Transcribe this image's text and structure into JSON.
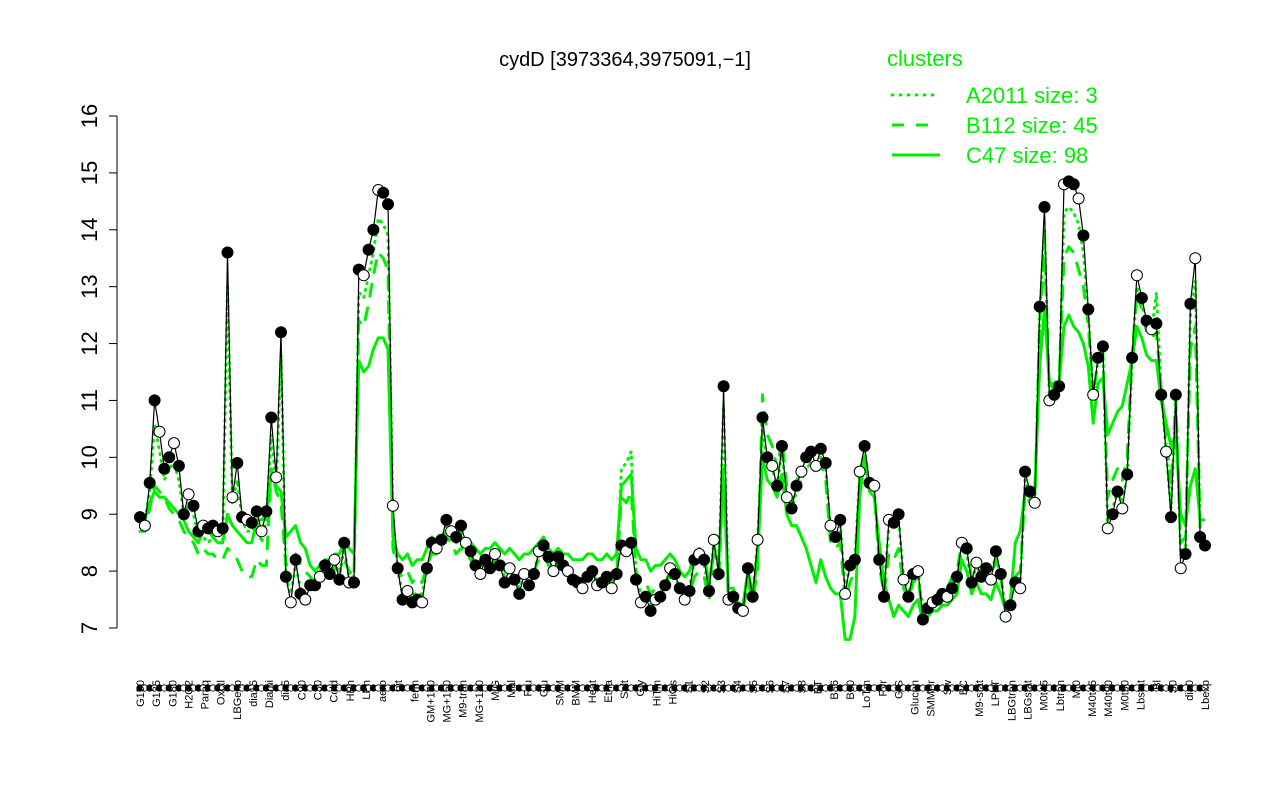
{
  "chart_data": {
    "type": "line",
    "title": "cydD [3973364,3975091,−1]",
    "xlabel": "",
    "ylabel": "",
    "ylim": [
      7,
      16
    ],
    "yticks": [
      7,
      8,
      9,
      10,
      11,
      12,
      13,
      14,
      15,
      16
    ],
    "xtick_labels": [
      "G150",
      "G135",
      "G180",
      "H2O2",
      "Paraq",
      "Oxctl",
      "LBGexp",
      "dia15",
      "Diami",
      "dia5",
      "C90",
      "C30",
      "Cold",
      "HPh",
      "LPh",
      "aero",
      "nit",
      "ferm",
      "GM+150",
      "MG+150",
      "M9-tran",
      "MG+120",
      "M/G",
      "Mal",
      "Fru",
      "Glu",
      "SMM",
      "BMM",
      "Heat",
      "Etha",
      "Salt",
      "Gly",
      "HiTm",
      "HiOs",
      "S1",
      "S2",
      "S3",
      "S4",
      "S5",
      "S6",
      "S7",
      "S8",
      "BT",
      "B36",
      "B60",
      "LoTm",
      "Pyr",
      "G/S",
      "Glucon",
      "SMMPr",
      "Sw",
      "BC",
      "M9-stat",
      "LPhT",
      "LBGtran",
      "LBGstat",
      "M0t45",
      "Lbtran",
      "Mt0",
      "M40t45",
      "M40t90",
      "M0t90",
      "Lbstat",
      "Bl",
      "S0",
      "dia0",
      "Lbexp"
    ],
    "legend": {
      "title": "clusters",
      "position": "top-right",
      "entries": [
        {
          "label": "A2011 size: 3",
          "style": "dotted"
        },
        {
          "label": "B112 size: 45",
          "style": "dashed"
        },
        {
          "label": "C47 size: 98",
          "style": "solid"
        }
      ]
    },
    "colors": {
      "clusters": "#00ee00",
      "gene": "#000000"
    },
    "series": {
      "gene": [
        8.95,
        8.8,
        9.55,
        11.0,
        10.45,
        9.8,
        10.0,
        10.25,
        9.85,
        9.0,
        9.35,
        9.15,
        8.7,
        8.8,
        8.75,
        8.8,
        8.7,
        8.75,
        13.6,
        9.3,
        9.9,
        8.95,
        8.9,
        8.85,
        9.05,
        8.7,
        9.05,
        10.7,
        9.65,
        12.2,
        7.9,
        7.45,
        8.2,
        7.6,
        7.5,
        7.75,
        7.75,
        7.9,
        8.1,
        7.95,
        8.2,
        7.85,
        8.5,
        7.8,
        7.8,
        13.3,
        13.2,
        13.65,
        14.0,
        14.7,
        14.65,
        14.45,
        9.15,
        8.05,
        7.5,
        7.65,
        7.45,
        7.5,
        7.45,
        8.05,
        8.5,
        8.4,
        8.55,
        8.9,
        8.7,
        8.6,
        8.8,
        8.5,
        8.35,
        8.1,
        7.95,
        8.2,
        8.05,
        8.3,
        8.1,
        7.8,
        8.05,
        7.85,
        7.6,
        7.95,
        7.75,
        7.95,
        8.35,
        8.45,
        8.25,
        8.0,
        8.25,
        8.1,
        8.0,
        7.85,
        7.8,
        7.7,
        7.9,
        8.0,
        7.75,
        7.8,
        7.9,
        7.7,
        7.95,
        8.45,
        8.35,
        8.5,
        7.85,
        7.45,
        7.55,
        7.3,
        7.5,
        7.55,
        7.75,
        8.05,
        7.95,
        7.7,
        7.5,
        7.65,
        8.2,
        8.3,
        8.2,
        7.65,
        8.55,
        7.95,
        11.25,
        7.5,
        7.55,
        7.35,
        7.3,
        8.05,
        7.55,
        8.55,
        10.7,
        10.0,
        9.85,
        9.5,
        10.2,
        9.3,
        9.1,
        9.5,
        9.75,
        10.0,
        10.1,
        9.85,
        10.15,
        9.9,
        8.8,
        8.6,
        8.9,
        7.6,
        8.1,
        8.2,
        9.75,
        10.2,
        9.55,
        9.5,
        8.2,
        7.55,
        8.9,
        8.85,
        9.0,
        7.85,
        7.55,
        7.95,
        8.0,
        7.15,
        7.35,
        7.45,
        7.5,
        7.6,
        7.55,
        7.7,
        7.9,
        8.5,
        8.4,
        7.8,
        8.15,
        7.9,
        8.05,
        7.85,
        8.35,
        7.95,
        7.2,
        7.4,
        7.8,
        7.7,
        9.75,
        9.4,
        9.2,
        12.65,
        14.4,
        11.0,
        11.1,
        11.25,
        14.8,
        14.85,
        14.8,
        14.55,
        13.9,
        12.6,
        11.1,
        11.75,
        11.95,
        8.75,
        9.0,
        9.4,
        9.1,
        9.7,
        11.75,
        13.2,
        12.8,
        12.4,
        12.25,
        12.35,
        11.1,
        10.1,
        8.95,
        11.1,
        8.05,
        8.3,
        12.7,
        13.5,
        8.6,
        8.45
      ],
      "C47": [
        8.8,
        8.9,
        9.2,
        9.4,
        9.3,
        9.3,
        9.2,
        9.1,
        9.0,
        8.9,
        8.7,
        8.6,
        8.5,
        8.7,
        8.7,
        8.6,
        8.5,
        8.5,
        9.0,
        8.8,
        8.7,
        8.6,
        8.5,
        8.5,
        8.9,
        8.9,
        9.0,
        9.7,
        9.5,
        9.4,
        8.6,
        8.7,
        8.8,
        8.5,
        8.4,
        8.1,
        8.0,
        8.1,
        8.2,
        8.2,
        8.3,
        8.3,
        8.5,
        8.4,
        8.3,
        11.7,
        11.5,
        11.6,
        11.9,
        12.1,
        12.1,
        11.9,
        8.6,
        8.3,
        8.2,
        8.3,
        8.1,
        8.2,
        8.2,
        8.4,
        8.6,
        8.5,
        8.6,
        8.7,
        8.6,
        8.5,
        8.6,
        8.5,
        8.5,
        8.4,
        8.3,
        8.4,
        8.4,
        8.5,
        8.4,
        8.3,
        8.4,
        8.3,
        8.2,
        8.3,
        8.3,
        8.4,
        8.5,
        8.6,
        8.4,
        8.3,
        8.4,
        8.3,
        8.3,
        8.2,
        8.2,
        8.2,
        8.3,
        8.3,
        8.2,
        8.2,
        8.3,
        8.2,
        8.3,
        9.5,
        9.6,
        9.7,
        8.4,
        8.2,
        8.2,
        8.0,
        8.1,
        8.1,
        8.2,
        8.3,
        8.2,
        8.0,
        7.9,
        8.0,
        8.3,
        8.4,
        8.3,
        7.8,
        8.3,
        8.2,
        9.6,
        7.7,
        7.7,
        7.4,
        7.4,
        8.0,
        7.6,
        8.2,
        10.0,
        9.6,
        9.5,
        9.3,
        9.7,
        9.0,
        8.8,
        8.8,
        8.6,
        8.4,
        8.1,
        7.8,
        8.2,
        7.9,
        7.7,
        7.6,
        7.6,
        6.8,
        6.8,
        7.2,
        9.3,
        10.0,
        9.4,
        9.3,
        8.5,
        7.8,
        7.5,
        7.2,
        7.4,
        7.3,
        7.2,
        7.4,
        7.5,
        7.1,
        7.2,
        7.3,
        7.3,
        7.4,
        7.4,
        7.5,
        7.6,
        8.2,
        8.0,
        7.6,
        7.8,
        7.6,
        7.6,
        7.5,
        7.8,
        7.6,
        7.3,
        7.5,
        8.5,
        8.7,
        9.4,
        9.3,
        9.4,
        11.6,
        12.6,
        11.3,
        11.2,
        11.3,
        12.3,
        12.5,
        12.3,
        12.2,
        12.0,
        11.6,
        10.6,
        11.3,
        11.4,
        10.4,
        10.6,
        10.8,
        10.9,
        11.3,
        11.7,
        12.3,
        12.1,
        11.8,
        11.7,
        11.7,
        11.0,
        10.6,
        10.2,
        10.4,
        9.0,
        8.8,
        9.5,
        9.8,
        8.9,
        8.9
      ],
      "B112": [
        8.7,
        8.7,
        9.1,
        9.5,
        9.4,
        9.3,
        9.1,
        9.0,
        8.9,
        8.7,
        8.6,
        8.5,
        8.3,
        8.4,
        8.3,
        8.3,
        8.2,
        8.2,
        8.4,
        8.3,
        8.2,
        8.0,
        7.9,
        7.9,
        8.2,
        8.1,
        8.1,
        9.8,
        9.4,
        9.2,
        8.1,
        8.2,
        8.3,
        8.1,
        8.0,
        7.9,
        7.8,
        8.0,
        8.0,
        7.9,
        8.1,
        8.0,
        8.2,
        8.0,
        7.9,
        12.4,
        12.3,
        12.7,
        13.2,
        13.6,
        13.5,
        13.3,
        8.4,
        8.0,
        7.9,
        8.0,
        7.8,
        7.9,
        7.8,
        8.1,
        8.3,
        8.3,
        8.4,
        8.6,
        8.5,
        8.3,
        8.4,
        8.3,
        8.2,
        8.1,
        8.0,
        8.1,
        8.1,
        8.2,
        8.1,
        8.0,
        8.1,
        8.0,
        7.9,
        8.0,
        7.9,
        8.0,
        8.2,
        8.3,
        8.1,
        8.0,
        8.1,
        8.0,
        8.0,
        7.9,
        7.9,
        7.8,
        7.9,
        8.0,
        7.8,
        7.8,
        7.9,
        7.8,
        7.9,
        9.3,
        9.2,
        9.4,
        8.0,
        7.8,
        7.8,
        7.6,
        7.7,
        7.7,
        7.8,
        7.9,
        7.8,
        7.7,
        7.6,
        7.6,
        7.9,
        8.0,
        7.9,
        7.5,
        8.0,
        7.8,
        9.8,
        7.5,
        7.5,
        7.3,
        7.3,
        7.8,
        7.5,
        8.0,
        11.1,
        10.4,
        10.2,
        9.8,
        10.3,
        9.5,
        9.2,
        9.6,
        9.7,
        9.8,
        9.9,
        9.7,
        9.9,
        9.6,
        8.5,
        8.4,
        8.5,
        7.5,
        7.8,
        8.0,
        9.6,
        10.1,
        9.5,
        9.4,
        8.1,
        7.6,
        8.3,
        8.2,
        8.4,
        7.7,
        7.5,
        7.8,
        7.9,
        7.2,
        7.4,
        7.5,
        7.6,
        7.7,
        7.7,
        7.9,
        8.0,
        8.5,
        8.4,
        7.9,
        8.1,
        7.9,
        8.0,
        7.8,
        8.2,
        7.9,
        7.3,
        7.5,
        7.9,
        8.0,
        9.4,
        9.2,
        9.2,
        12.4,
        13.6,
        11.3,
        11.3,
        11.4,
        13.5,
        13.7,
        13.6,
        13.3,
        13.0,
        12.3,
        11.1,
        11.7,
        11.8,
        9.3,
        9.6,
        9.8,
        9.6,
        10.0,
        11.8,
        12.9,
        12.6,
        12.2,
        12.1,
        12.2,
        11.2,
        10.4,
        9.5,
        11.0,
        8.5,
        8.6,
        11.9,
        12.3,
        8.8,
        8.7
      ],
      "A2011": [
        8.9,
        8.9,
        9.4,
        10.6,
        10.1,
        9.6,
        9.8,
        9.9,
        9.6,
        9.0,
        9.2,
        9.0,
        8.6,
        8.6,
        8.5,
        8.6,
        8.5,
        8.5,
        13.0,
        9.2,
        9.6,
        8.9,
        8.7,
        8.7,
        8.9,
        8.5,
        8.9,
        10.4,
        9.5,
        11.8,
        7.9,
        7.6,
        8.1,
        7.7,
        7.6,
        7.8,
        7.8,
        7.9,
        8.0,
        7.9,
        8.1,
        7.9,
        8.4,
        7.9,
        7.9,
        12.9,
        12.8,
        13.2,
        13.6,
        14.2,
        14.1,
        13.9,
        9.0,
        8.0,
        7.6,
        7.7,
        7.6,
        7.6,
        7.6,
        8.0,
        8.4,
        8.3,
        8.5,
        8.8,
        8.6,
        8.5,
        8.7,
        8.4,
        8.3,
        8.1,
        8.0,
        8.2,
        8.0,
        8.2,
        8.1,
        7.9,
        8.0,
        7.9,
        7.7,
        7.9,
        7.8,
        8.0,
        8.3,
        8.4,
        8.2,
        8.0,
        8.2,
        8.0,
        8.0,
        7.9,
        7.8,
        7.8,
        7.9,
        8.0,
        7.8,
        7.8,
        7.9,
        7.8,
        7.9,
        9.8,
        9.9,
        10.1,
        7.9,
        7.6,
        7.6,
        7.4,
        7.6,
        7.6,
        7.8,
        8.0,
        7.9,
        7.7,
        7.6,
        7.7,
        8.2,
        8.2,
        8.1,
        7.7,
        8.5,
        8.0,
        10.9,
        7.6,
        7.6,
        7.4,
        7.4,
        8.0,
        7.6,
        8.5,
        10.5,
        9.9,
        9.8,
        9.5,
        10.1,
        9.3,
        9.1,
        9.4,
        9.6,
        9.8,
        9.9,
        9.8,
        10.0,
        9.8,
        8.7,
        8.5,
        8.8,
        7.7,
        8.1,
        8.2,
        9.7,
        10.1,
        9.5,
        9.4,
        8.2,
        7.7,
        8.8,
        8.8,
        8.9,
        7.9,
        7.6,
        7.9,
        8.0,
        7.3,
        7.4,
        7.5,
        7.6,
        7.6,
        7.6,
        7.8,
        7.9,
        8.4,
        8.3,
        7.8,
        8.1,
        7.9,
        8.0,
        7.9,
        8.3,
        7.9,
        7.3,
        7.5,
        7.8,
        7.8,
        9.6,
        9.3,
        9.2,
        12.5,
        14.0,
        11.0,
        11.1,
        11.2,
        14.3,
        14.4,
        14.3,
        14.1,
        13.6,
        12.5,
        11.1,
        11.7,
        11.9,
        8.8,
        9.1,
        9.4,
        9.2,
        9.7,
        11.7,
        13.0,
        12.7,
        12.3,
        12.2,
        12.9,
        11.2,
        10.1,
        9.1,
        11.0,
        8.3,
        8.4,
        12.5,
        13.1,
        8.7,
        8.5
      ]
    }
  }
}
